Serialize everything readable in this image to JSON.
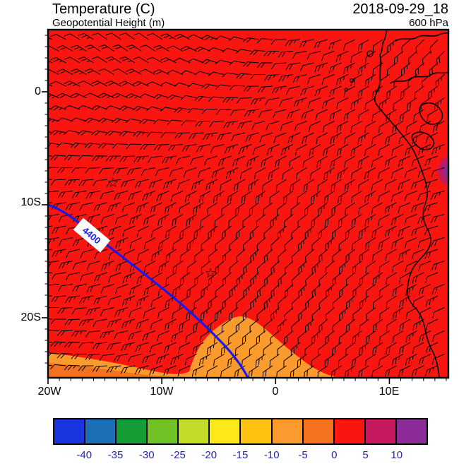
{
  "header": {
    "title": "Temperature (C)",
    "subtitle": "Geopotential Height (m)",
    "datetime": "2018-09-29_18",
    "level": "600 hPa"
  },
  "axes": {
    "y_ticks": [
      "0",
      "10S",
      "20S"
    ],
    "x_ticks": [
      "20W",
      "10W",
      "0",
      "10E"
    ]
  },
  "map": {
    "contour_label": "4400",
    "star_glyph": "☆"
  },
  "colors": {
    "fill_red": "#fa1510",
    "fill_orange": "#fb9b2d",
    "fill_deep_orange": "#f4711f",
    "fill_crimson": "#c4195e",
    "fill_purple": "#8d2b9a",
    "contour_blue": "#1a1aee",
    "coast_black": "#000000",
    "colorbar_label_navy": "#2626b0"
  },
  "colorbar": {
    "labels": [
      "-40",
      "-35",
      "-30",
      "-25",
      "-20",
      "-15",
      "-10",
      "-5",
      "0",
      "5",
      "10"
    ],
    "colors": [
      "#1a35e0",
      "#1d6fb5",
      "#169c35",
      "#71c226",
      "#c4db2a",
      "#ffe818",
      "#fec310",
      "#fb9b2d",
      "#f4711f",
      "#fa1510",
      "#c4195e",
      "#8d2b9a"
    ]
  },
  "chart_data": {
    "type": "heatmap",
    "title": "Temperature (C)",
    "overlays": [
      "Geopotential Height (m) contour",
      "wind barbs"
    ],
    "valid_time": "2018-09-29_18",
    "level": "600 hPa",
    "x_ticks": [
      "20W",
      "10W",
      "0",
      "10E"
    ],
    "y_ticks": [
      "0",
      "10S",
      "20S"
    ],
    "colorbar_boundaries_c": [
      -40,
      -35,
      -30,
      -25,
      -20,
      -15,
      -10,
      -5,
      0,
      5,
      10
    ],
    "dominant_temperature_bin_c": "0 to 5 (red) across nearly the entire domain",
    "features": [
      {
        "feature": "orange band (-10 to 0 C)",
        "location": "southern edge of domain, roughly south of 22S between 20W and 5E"
      },
      {
        "feature": "deeper orange strip",
        "location": "bottom-left corner along southern boundary"
      },
      {
        "feature": "small warm patch (above 10 C, purple with crimson rim)",
        "location": "eastern boundary near 9S"
      },
      {
        "feature": "geopotential height contour 4400 m",
        "location": "runs NE-SW from about (20W, 9.5S) to (2W, 26S)"
      },
      {
        "feature": "star markers",
        "location": [
          "about 14W, 8S",
          "about 6W, 16S"
        ]
      },
      {
        "feature": "wind barbs",
        "location": "regular grid over full domain, predominantly easterly flow"
      },
      {
        "feature": "African coastline",
        "location": "right side of map from Gulf of Guinea south to ~25S"
      }
    ]
  }
}
